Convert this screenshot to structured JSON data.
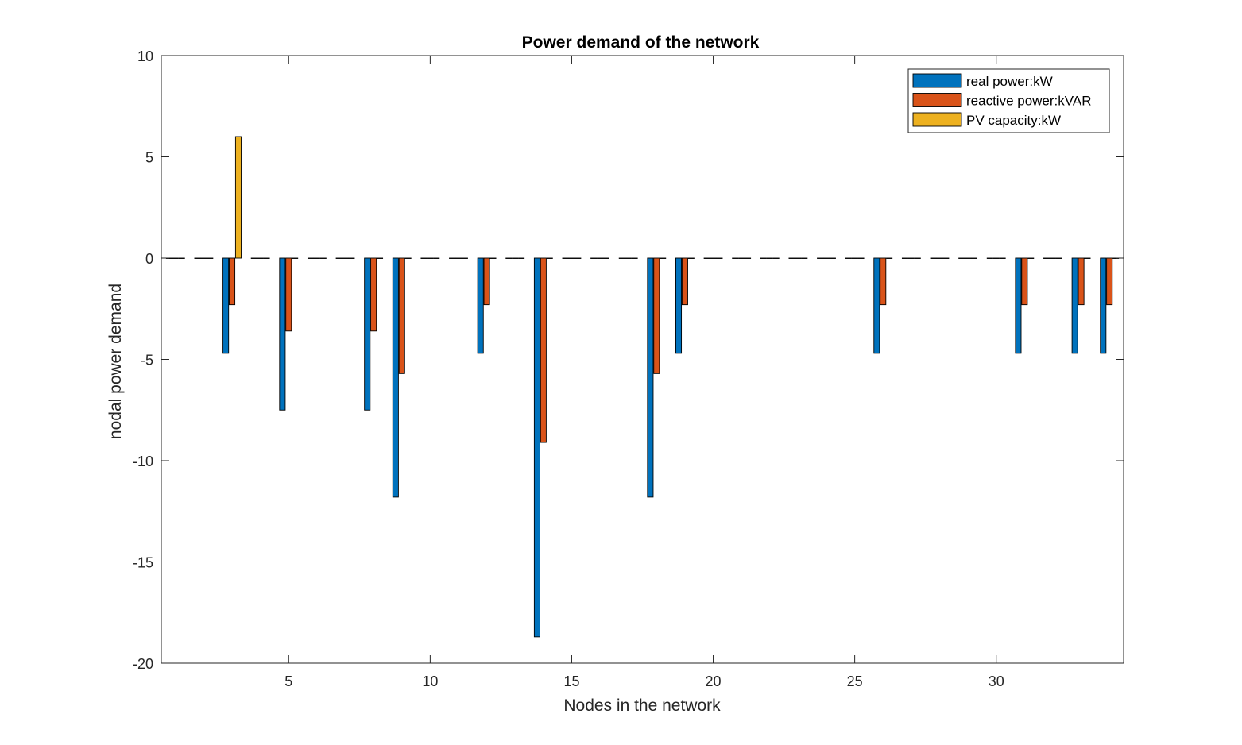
{
  "chart_data": {
    "type": "bar",
    "title": "Power demand of the network",
    "xlabel": "Nodes in the network",
    "ylabel": "nodal power demand",
    "xlim": [
      0.5,
      34.5
    ],
    "ylim": [
      -20,
      10
    ],
    "xticks": [
      5,
      10,
      15,
      20,
      25,
      30
    ],
    "yticks": [
      -20,
      -15,
      -10,
      -5,
      0,
      5,
      10
    ],
    "legend_position": "top-right",
    "grid": false,
    "categories": [
      1,
      2,
      3,
      4,
      5,
      6,
      7,
      8,
      9,
      10,
      11,
      12,
      13,
      14,
      15,
      16,
      17,
      18,
      19,
      20,
      21,
      22,
      23,
      24,
      25,
      26,
      27,
      28,
      29,
      30,
      31,
      32,
      33,
      34
    ],
    "series": [
      {
        "name": "real power:kW",
        "color": "#0072BD",
        "values": [
          0,
          0,
          -4.7,
          0,
          -7.5,
          0,
          0,
          -7.5,
          -11.8,
          0,
          0,
          -4.7,
          0,
          -18.7,
          0,
          0,
          0,
          -11.8,
          -4.7,
          0,
          0,
          0,
          0,
          0,
          0,
          -4.7,
          0,
          0,
          0,
          0,
          -4.7,
          0,
          -4.7,
          -4.7
        ]
      },
      {
        "name": "reactive power:kVAR",
        "color": "#D95319",
        "values": [
          0,
          0,
          -2.3,
          0,
          -3.6,
          0,
          0,
          -3.6,
          -5.7,
          0,
          0,
          -2.3,
          0,
          -9.1,
          0,
          0,
          0,
          -5.7,
          -2.3,
          0,
          0,
          0,
          0,
          0,
          0,
          -2.3,
          0,
          0,
          0,
          0,
          -2.3,
          0,
          -2.3,
          -2.3
        ]
      },
      {
        "name": "PV capacity:kW",
        "color": "#EDB120",
        "values": [
          0,
          0,
          6,
          0,
          0,
          0,
          0,
          0,
          0,
          0,
          0,
          0,
          0,
          0,
          0,
          0,
          0,
          0,
          0,
          0,
          0,
          0,
          0,
          0,
          0,
          0,
          0,
          0,
          0,
          0,
          0,
          0,
          0,
          0
        ]
      }
    ]
  }
}
